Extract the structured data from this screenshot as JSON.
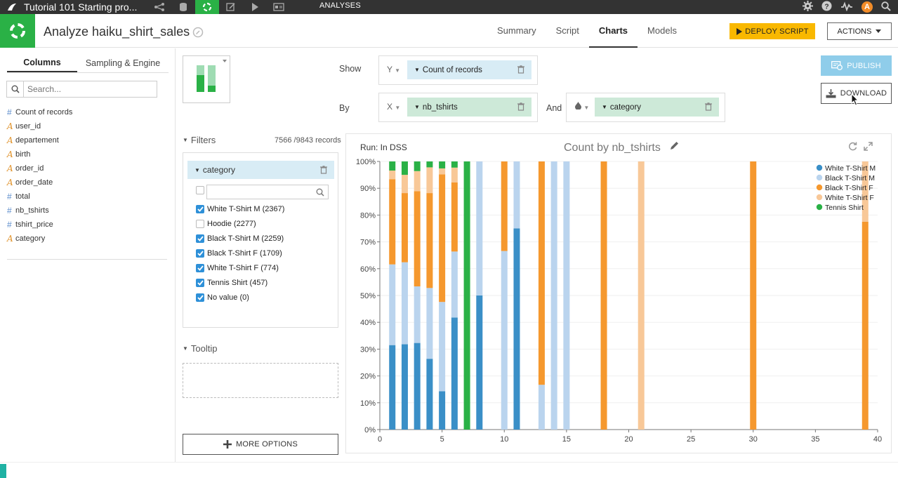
{
  "topbar": {
    "project_name": "Tutorial 101 Starting pro...",
    "section_label": "ANALYSES",
    "avatar_letter": "A",
    "icons": [
      "flow-icon",
      "datasets-icon",
      "analyses-icon",
      "notebook-icon",
      "jobs-icon",
      "dashboard-icon"
    ]
  },
  "header": {
    "title": "Analyze haiku_shirt_sales",
    "tabs": [
      "Summary",
      "Script",
      "Charts",
      "Models"
    ],
    "active_tab": "Charts",
    "deploy_label": "DEPLOY SCRIPT",
    "actions_label": "ACTIONS"
  },
  "left_panel": {
    "tabs": [
      "Columns",
      "Sampling & Engine"
    ],
    "search_placeholder": "Search...",
    "columns": [
      {
        "type": "#",
        "name": "Count of records"
      },
      {
        "type": "A",
        "name": "user_id"
      },
      {
        "type": "A",
        "name": "departement"
      },
      {
        "type": "A",
        "name": "birth"
      },
      {
        "type": "A",
        "name": "order_id"
      },
      {
        "type": "A",
        "name": "order_date"
      },
      {
        "type": "#",
        "name": "total"
      },
      {
        "type": "#",
        "name": "nb_tshirts"
      },
      {
        "type": "#",
        "name": "tshirt_price"
      },
      {
        "type": "A",
        "name": "category"
      }
    ]
  },
  "config": {
    "show_label": "Show",
    "by_label": "By",
    "and_label": "And",
    "y_letter": "Y",
    "x_letter": "X",
    "y_measure": "Count of records",
    "x_dimension": "nb_tshirts",
    "color_dimension": "category"
  },
  "filters": {
    "title": "Filters",
    "record_count": "7566 /9843 records",
    "filter_name": "category",
    "options": [
      {
        "label": "White T-Shirt M (2367)",
        "checked": true
      },
      {
        "label": "Hoodie (2277)",
        "checked": false
      },
      {
        "label": "Black T-Shirt M (2259)",
        "checked": true
      },
      {
        "label": "Black T-Shirt F (1709)",
        "checked": true
      },
      {
        "label": "White T-Shirt F (774)",
        "checked": true
      },
      {
        "label": "Tennis Shirt (457)",
        "checked": true
      },
      {
        "label": "No value (0)",
        "checked": true
      }
    ]
  },
  "tooltip": {
    "title": "Tooltip"
  },
  "more_options_label": "MORE OPTIONS",
  "publish_label": "PUBLISH",
  "download_label": "DOWNLOAD",
  "chart_header": {
    "run_label": "Run: In DSS",
    "title": "Count by nb_tshirts"
  },
  "colors": {
    "accent_green": "#2ab146",
    "deploy_yellow": "#f9b800",
    "publish_blue": "#8fcdea"
  },
  "chart_data": {
    "type": "bar",
    "stacked_percent": true,
    "title": "Count by nb_tshirts",
    "xlim": [
      0,
      40
    ],
    "ylim": [
      0,
      100
    ],
    "x_ticks": [
      0,
      5,
      10,
      15,
      20,
      25,
      30,
      35,
      40
    ],
    "y_ticks": [
      "0%",
      "10%",
      "20%",
      "30%",
      "40%",
      "50%",
      "60%",
      "70%",
      "80%",
      "90%",
      "100%"
    ],
    "x": [
      1,
      2,
      3,
      4,
      5,
      6,
      7,
      8,
      10,
      11,
      13,
      14,
      15,
      18,
      21,
      30,
      39
    ],
    "series": [
      {
        "name": "White T-Shirt M",
        "color": "#3a8fc7",
        "values": [
          31.5,
          31.8,
          32.3,
          26.4,
          14.3,
          41.8,
          0,
          50,
          0,
          75,
          0,
          0,
          0,
          0,
          0,
          0,
          0
        ]
      },
      {
        "name": "Black T-Shirt M",
        "color": "#bad4ee",
        "values": [
          30.1,
          30.6,
          21.1,
          26.4,
          33.3,
          24.6,
          0,
          50,
          66.6,
          25,
          16.7,
          100,
          100,
          0,
          0,
          0,
          0
        ]
      },
      {
        "name": "Black T-Shirt F",
        "color": "#f5982e",
        "values": [
          31.8,
          25.8,
          35.5,
          35.4,
          47.6,
          25.8,
          0,
          0,
          33.4,
          0,
          83.3,
          0,
          0,
          100,
          0,
          100,
          77.5
        ]
      },
      {
        "name": "White T-Shirt F",
        "color": "#f8c898",
        "values": [
          3.2,
          6.8,
          7.5,
          9.6,
          2.2,
          5.5,
          0,
          0,
          0,
          0,
          0,
          0,
          0,
          0,
          100,
          0,
          22.5
        ]
      },
      {
        "name": "Tennis Shirt",
        "color": "#2ab146",
        "values": [
          3.4,
          5.0,
          3.6,
          2.2,
          2.6,
          2.3,
          100,
          0,
          0,
          0,
          0,
          0,
          0,
          0,
          0,
          0,
          0
        ]
      }
    ],
    "legend_position": "top-right"
  }
}
